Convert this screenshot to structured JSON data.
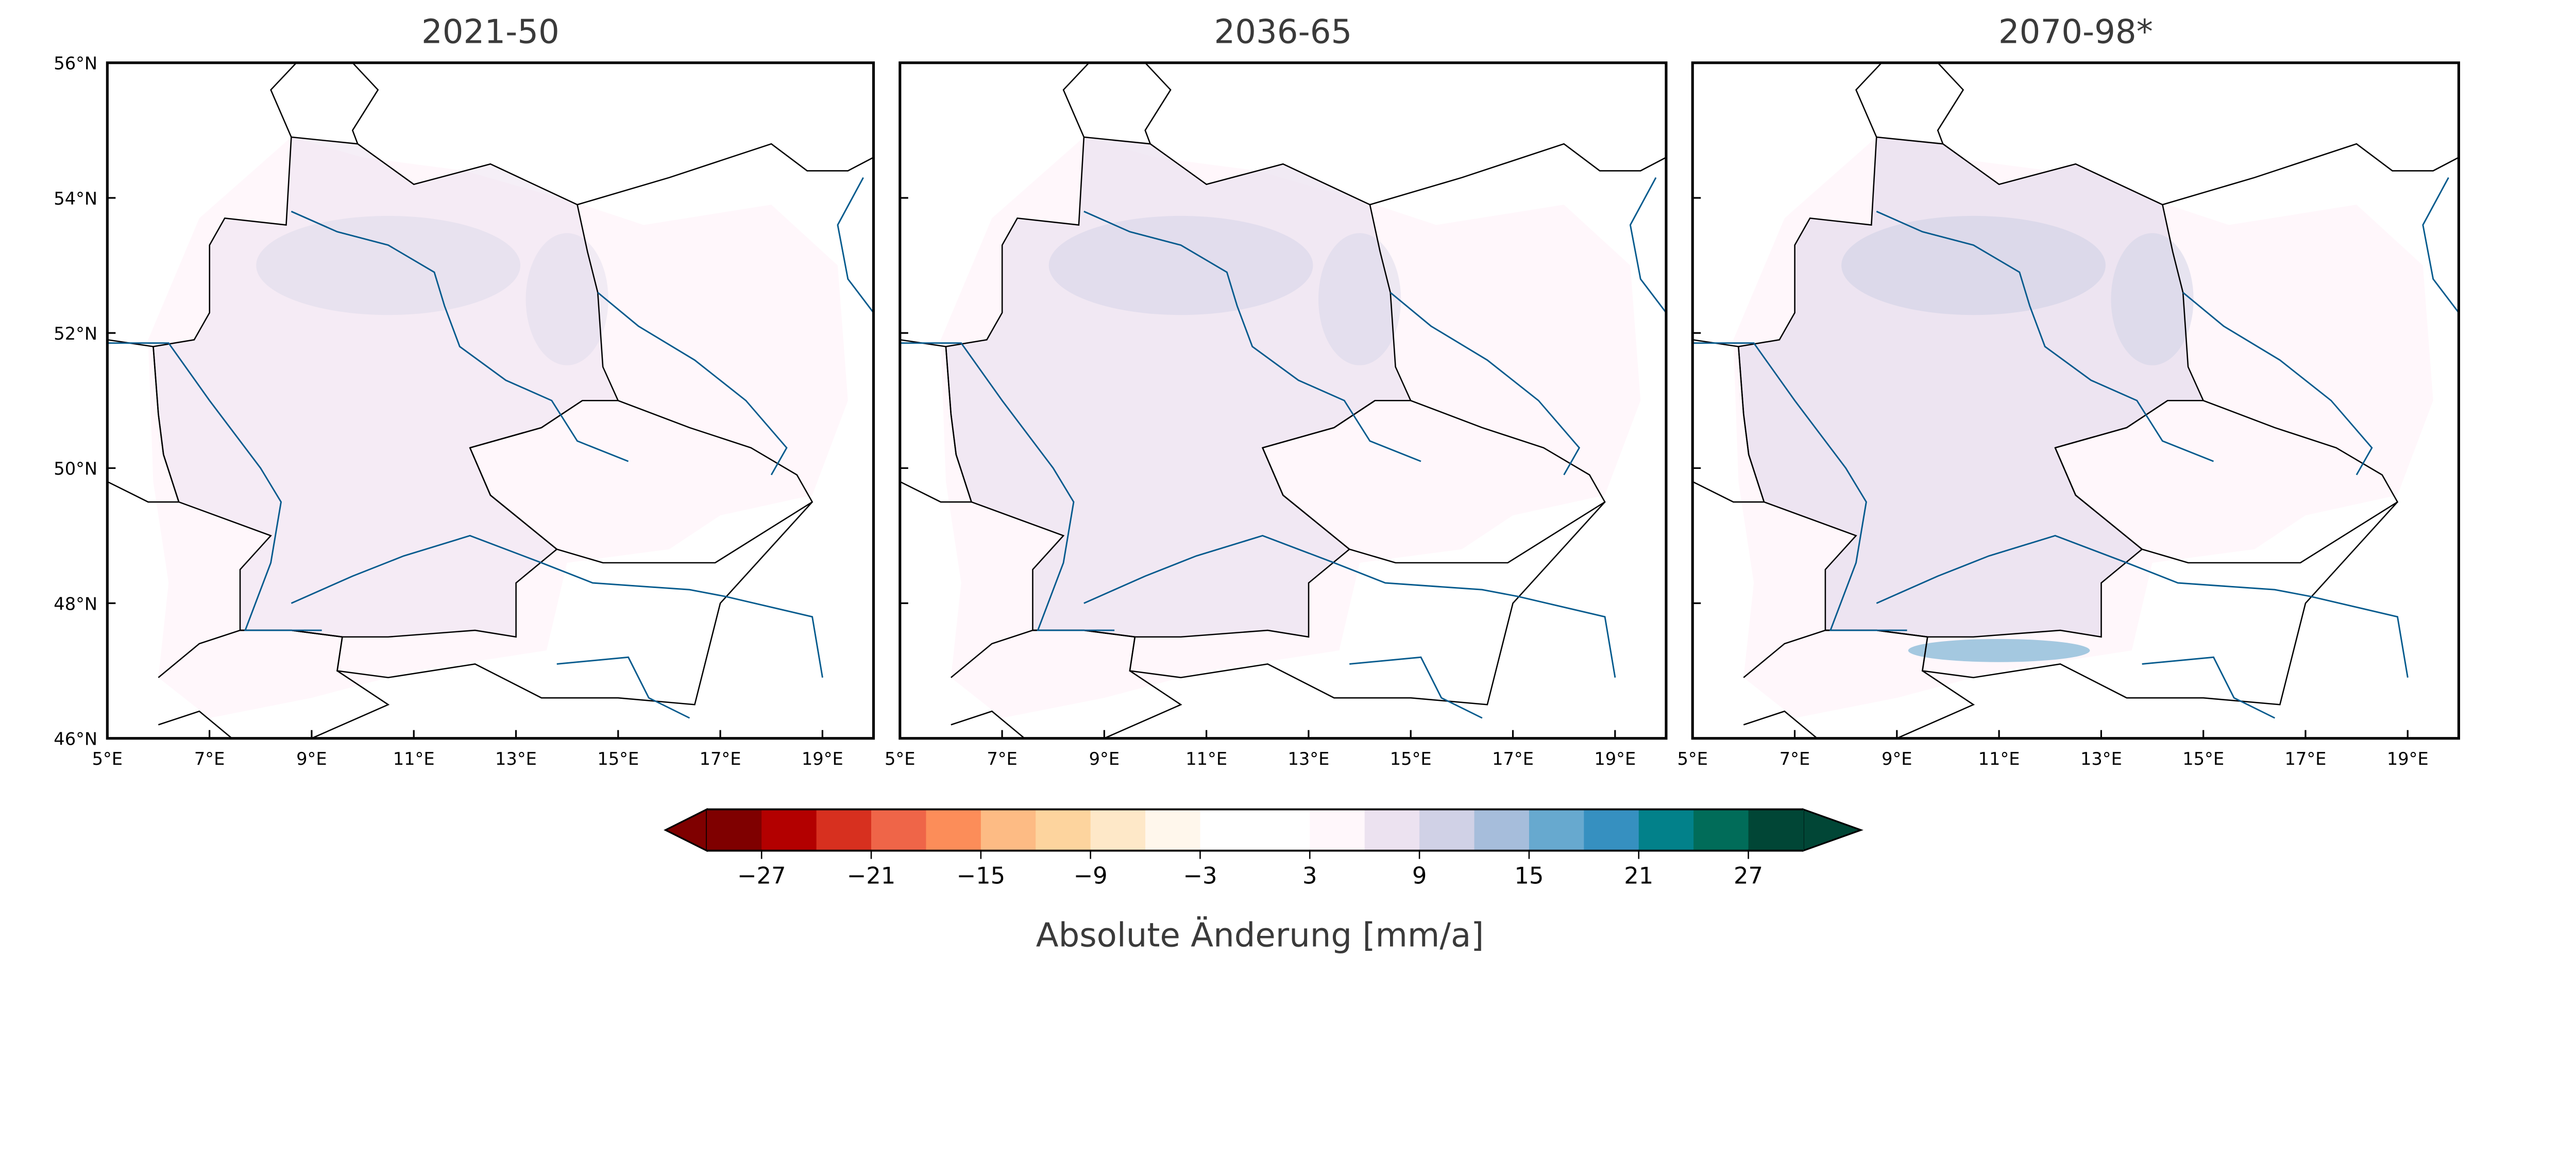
{
  "chart_data": {
    "type": "heatmap",
    "panels": [
      {
        "title": "2021-50",
        "intensity": 1
      },
      {
        "title": "2036-65",
        "intensity": 1.3
      },
      {
        "title": "2070-98*",
        "intensity": 1.7
      }
    ],
    "xticks": [
      "5°E",
      "7°E",
      "9°E",
      "11°E",
      "13°E",
      "15°E",
      "17°E",
      "19°E"
    ],
    "xtick_values": [
      5,
      7,
      9,
      11,
      13,
      15,
      17,
      19
    ],
    "yticks": [
      "56°N",
      "54°N",
      "52°N",
      "50°N",
      "48°N",
      "46°N"
    ],
    "ytick_values": [
      56,
      54,
      52,
      50,
      48,
      46
    ],
    "xlim": [
      5,
      20
    ],
    "ylim": [
      46,
      56
    ],
    "colorbar": {
      "label": "Absolute Änderung [mm/a]",
      "ticks": [
        "−27",
        "−21",
        "−15",
        "−9",
        "−3",
        "3",
        "9",
        "15",
        "21",
        "27"
      ],
      "tick_values": [
        -27,
        -21,
        -15,
        -9,
        -3,
        3,
        9,
        15,
        21,
        27
      ],
      "boundaries": [
        -30,
        -27,
        -24,
        -21,
        -18,
        -15,
        -12,
        -9,
        -6,
        -3,
        3,
        6,
        9,
        12,
        15,
        18,
        21,
        24,
        27,
        30
      ],
      "colors": [
        "#7f0000",
        "#b30000",
        "#d7301f",
        "#ef6548",
        "#fc8d59",
        "#fdbb84",
        "#fdd49e",
        "#fee8c8",
        "#fff7ec",
        "#ffffff",
        "#fff7fb",
        "#ece2f0",
        "#d0d1e6",
        "#a6bddb",
        "#67a9cf",
        "#3690c0",
        "#02818a",
        "#016c59",
        "#014636"
      ],
      "extend": "both"
    },
    "colors": {
      "border": "#000000",
      "river": "#045a8d",
      "title": "#3a3a3a"
    }
  }
}
